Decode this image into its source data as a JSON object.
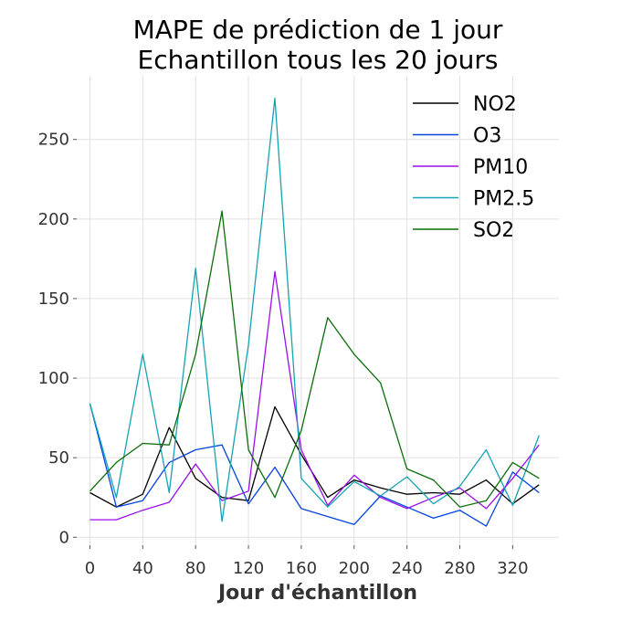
{
  "chart_data": {
    "type": "line",
    "title": "MAPE de prédiction de 1 jour",
    "subtitle": "Echantillon tous les 20 jours",
    "xlabel": "Jour d'échantillon",
    "ylabel": "",
    "xlim": [
      -10,
      355
    ],
    "ylim": [
      -5,
      290
    ],
    "xticks": [
      0,
      40,
      80,
      120,
      160,
      200,
      240,
      280,
      320
    ],
    "yticks": [
      0,
      50,
      100,
      150,
      200,
      250
    ],
    "grid": true,
    "legend_position": "top-right",
    "x": [
      0,
      20,
      40,
      60,
      80,
      100,
      120,
      140,
      160,
      180,
      200,
      220,
      240,
      260,
      280,
      300,
      320,
      340
    ],
    "series": [
      {
        "name": "NO2",
        "color": "#000000",
        "values": [
          28,
          19,
          27,
          69,
          37,
          25,
          23,
          82,
          52,
          25,
          36,
          31,
          27,
          28,
          27,
          36,
          21,
          33
        ]
      },
      {
        "name": "O3",
        "color": "#0343df",
        "values": [
          84,
          19,
          23,
          47,
          55,
          58,
          21,
          44,
          18,
          13,
          8,
          26,
          19,
          12,
          17,
          7,
          41,
          28
        ]
      },
      {
        "name": "PM10",
        "color": "#9a0eea",
        "values": [
          11,
          11,
          17,
          22,
          46,
          23,
          29,
          167,
          55,
          20,
          39,
          25,
          18,
          25,
          31,
          18,
          37,
          58
        ]
      },
      {
        "name": "PM2.5",
        "color": "#13a3b3",
        "values": [
          84,
          25,
          115,
          28,
          169,
          10,
          121,
          276,
          37,
          19,
          35,
          26,
          38,
          21,
          32,
          55,
          20,
          64
        ]
      },
      {
        "name": "SO2",
        "color": "#0a6e0a",
        "values": [
          29,
          47,
          59,
          58,
          115,
          205,
          55,
          25,
          67,
          138,
          115,
          97,
          43,
          36,
          19,
          23,
          47,
          37
        ]
      }
    ]
  }
}
